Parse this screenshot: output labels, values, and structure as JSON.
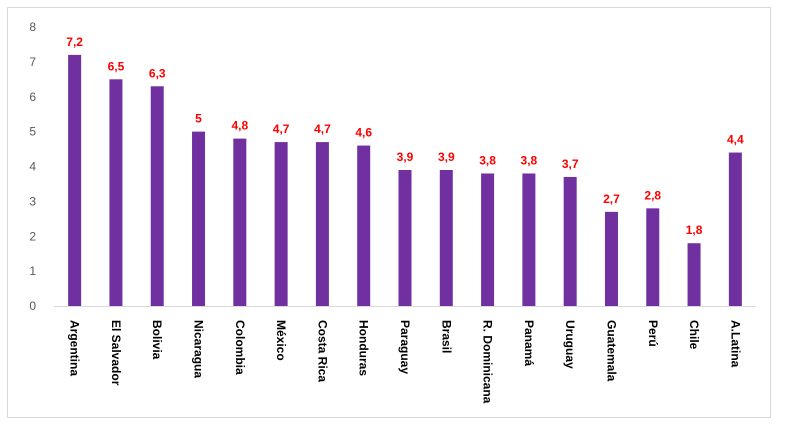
{
  "chart_data": {
    "type": "bar",
    "categories": [
      "Argentina",
      "El Salvador",
      "Bolivia",
      "Nicaragua",
      "Colombia",
      "México",
      "Costa Rica",
      "Honduras",
      "Paraguay",
      "Brasil",
      "R. Dominicana",
      "Panamá",
      "Uruguay",
      "Guatemala",
      "Perú",
      "Chile",
      "A.Latina"
    ],
    "values": [
      7.2,
      6.5,
      6.3,
      5,
      4.8,
      4.7,
      4.7,
      4.6,
      3.9,
      3.9,
      3.8,
      3.8,
      3.7,
      2.7,
      2.8,
      1.8,
      4.4
    ],
    "data_labels": [
      "7,2",
      "6,5",
      "6,3",
      "5",
      "4,8",
      "4,7",
      "4,7",
      "4,6",
      "3,9",
      "3,9",
      "3,8",
      "3,8",
      "3,7",
      "2,7",
      "2,8",
      "1,8",
      "4,4"
    ],
    "y_ticks": [
      "0",
      "1",
      "2",
      "3",
      "4",
      "5",
      "6",
      "7",
      "8"
    ],
    "ylim": [
      0,
      8
    ],
    "title": "",
    "xlabel": "",
    "ylabel": "",
    "grid": false,
    "legend": "none",
    "bar_color": "#7030a0",
    "label_color": "#ff0000"
  }
}
